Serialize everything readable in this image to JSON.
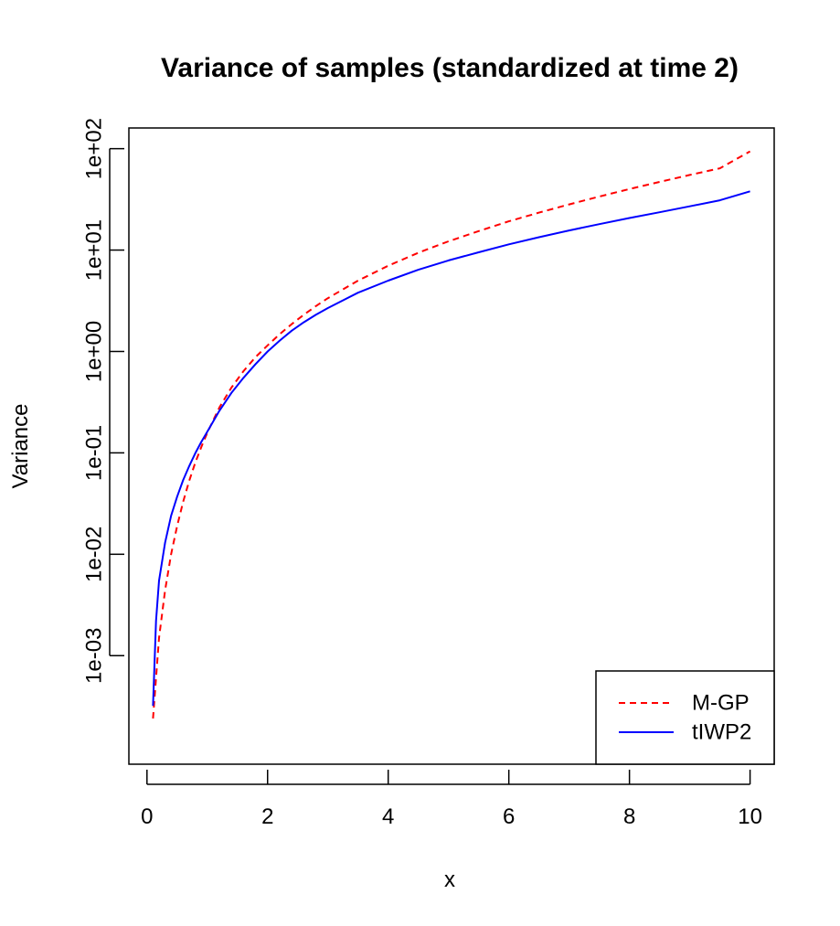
{
  "chart_data": {
    "type": "line",
    "title": "Variance of samples (standardized at time 2)",
    "xlabel": "x",
    "ylabel": "Variance",
    "xlim": [
      -0.3,
      10.4
    ],
    "ylim": [
      8.5e-05,
      160
    ],
    "y_scale": "log",
    "x_ticks": [
      0,
      2,
      4,
      6,
      8,
      10
    ],
    "x_tick_labels": [
      "0",
      "2",
      "4",
      "6",
      "8",
      "10"
    ],
    "y_ticks": [
      0.001,
      0.01,
      0.1,
      1,
      10,
      100
    ],
    "y_tick_labels": [
      "1e-03",
      "1e-02",
      "1e-01",
      "1e+00",
      "1e+01",
      "1e+02"
    ],
    "grid": false,
    "legend_position": "bottom-right",
    "series": [
      {
        "name": "M-GP",
        "color": "#ff0000",
        "dash": "dashed",
        "x": [
          0.1,
          0.15,
          0.2,
          0.3,
          0.4,
          0.5,
          0.6,
          0.7,
          0.8,
          0.9,
          1.0,
          1.2,
          1.4,
          1.6,
          1.8,
          2.0,
          2.2,
          2.4,
          2.6,
          2.8,
          3.0,
          3.5,
          4.0,
          4.5,
          5.0,
          5.5,
          6.0,
          6.5,
          7.0,
          7.5,
          8.0,
          8.5,
          9.0,
          9.5,
          10.0
        ],
        "y": [
          0.00024,
          0.0006,
          0.0015,
          0.0044,
          0.01,
          0.019,
          0.033,
          0.053,
          0.08,
          0.114,
          0.158,
          0.28,
          0.44,
          0.64,
          0.88,
          1.15,
          1.48,
          1.86,
          2.3,
          2.8,
          3.35,
          5.0,
          7.0,
          9.4,
          12.2,
          15.4,
          19.2,
          23.4,
          28.2,
          33.7,
          40.0,
          47.0,
          55.0,
          64.0,
          94.0
        ]
      },
      {
        "name": "tIWP2",
        "color": "#0000ff",
        "dash": "solid",
        "x": [
          0.1,
          0.15,
          0.2,
          0.3,
          0.4,
          0.5,
          0.6,
          0.7,
          0.8,
          0.9,
          1.0,
          1.2,
          1.4,
          1.6,
          1.8,
          2.0,
          2.2,
          2.4,
          2.6,
          2.8,
          3.0,
          3.5,
          4.0,
          4.5,
          5.0,
          5.5,
          6.0,
          6.5,
          7.0,
          7.5,
          8.0,
          8.5,
          9.0,
          9.5,
          10.0
        ],
        "y": [
          0.00032,
          0.0022,
          0.0055,
          0.013,
          0.024,
          0.037,
          0.054,
          0.074,
          0.099,
          0.128,
          0.162,
          0.26,
          0.39,
          0.55,
          0.75,
          1.0,
          1.28,
          1.6,
          1.94,
          2.3,
          2.68,
          3.8,
          5.0,
          6.4,
          7.9,
          9.5,
          11.4,
          13.4,
          15.6,
          18.0,
          20.7,
          23.6,
          27.0,
          31.0,
          38.0
        ]
      }
    ]
  }
}
